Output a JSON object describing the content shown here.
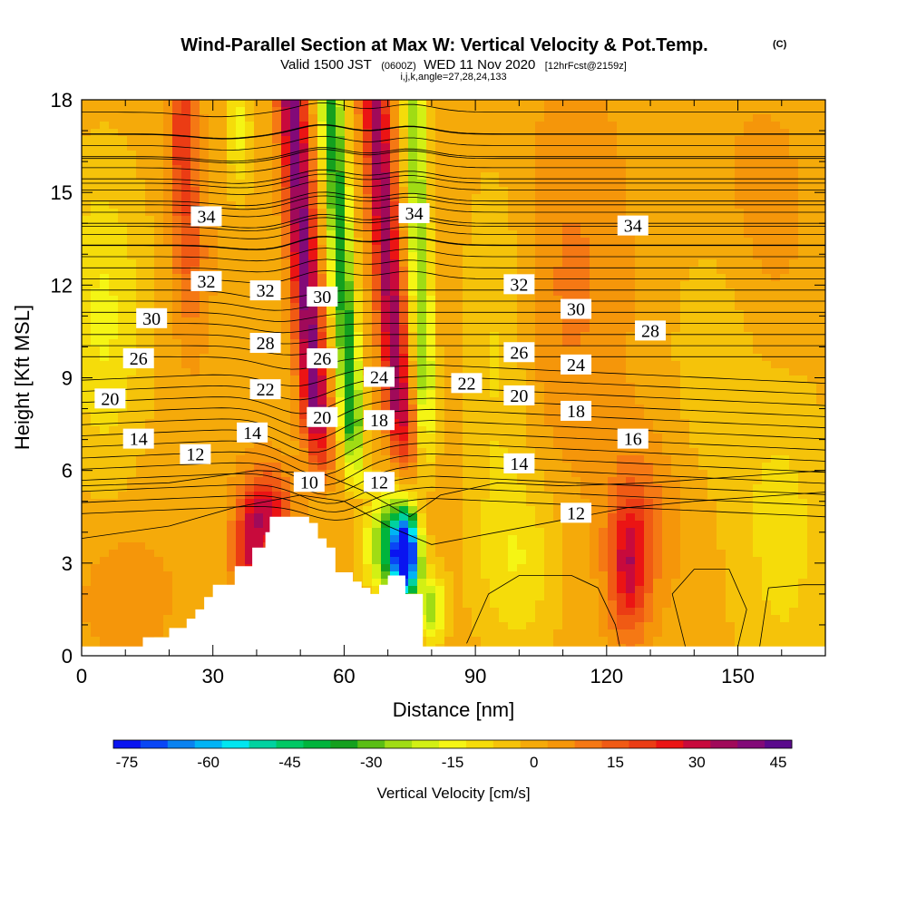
{
  "header": {
    "title": "Wind-Parallel Section at Max W: Vertical Velocity & Pot.Temp.",
    "title_tag": "(C)",
    "valid_prefix": "Valid 1500 JST",
    "valid_utc": "(0600Z)",
    "valid_date": "WED 11 Nov 2020",
    "forecast_tag": "[12hrFcst@2159z]",
    "indices": "i,j,k,angle=27,28,24,133"
  },
  "chart_data": {
    "type": "heatmap",
    "xlabel": "Distance [nm]",
    "ylabel": "Height [Kft MSL]",
    "xlim": [
      0,
      170
    ],
    "ylim": [
      0,
      18
    ],
    "x_ticks": [
      0,
      30,
      60,
      90,
      120,
      150
    ],
    "y_ticks": [
      0,
      3,
      6,
      9,
      12,
      15,
      18
    ],
    "shaded_field": "Vertical Velocity",
    "contour_field": "Potential Temperature (C)",
    "colorbar": {
      "label": "Vertical Velocity [cm/s]",
      "range": [
        -75,
        50
      ],
      "step": 5,
      "tick_labels": [
        "-75",
        "-60",
        "-45",
        "-30",
        "-15",
        "0",
        "15",
        "30",
        "45"
      ],
      "colors": [
        "#0a14f0",
        "#0a46f5",
        "#0a82f0",
        "#00b4f5",
        "#00e6f0",
        "#00d2a0",
        "#00c864",
        "#00b43c",
        "#14a01e",
        "#5abe14",
        "#a0dc14",
        "#d2f014",
        "#f5f514",
        "#f5dc0a",
        "#f5c30a",
        "#f5aa0a",
        "#f5960a",
        "#f57814",
        "#f05a14",
        "#eb3c14",
        "#eb1414",
        "#c80a3c",
        "#a00a5a",
        "#820a78",
        "#5a0a8c"
      ]
    },
    "terrain_profile": {
      "x": [
        0,
        10,
        12,
        14,
        19,
        20,
        22,
        24,
        25,
        26,
        27,
        28,
        29,
        30,
        33,
        35,
        37,
        39,
        40,
        42,
        43,
        46,
        47,
        50,
        51,
        52,
        53,
        54,
        55,
        56,
        57,
        58,
        59,
        60,
        61,
        62,
        63,
        64,
        65,
        66,
        67,
        68,
        69,
        70,
        71,
        72,
        73,
        74,
        75,
        76,
        77,
        78,
        80,
        170
      ],
      "height": [
        0.3,
        0.3,
        0.3,
        0.6,
        0.6,
        0.9,
        0.9,
        1.2,
        1.2,
        1.5,
        1.5,
        1.9,
        1.9,
        2.3,
        2.3,
        2.9,
        2.9,
        3.5,
        3.5,
        4.0,
        4.5,
        4.5,
        4.5,
        4.5,
        4.5,
        4.3,
        4.3,
        3.8,
        3.8,
        3.5,
        3.5,
        2.7,
        2.7,
        2.7,
        2.7,
        2.4,
        2.4,
        2.2,
        2.2,
        2.0,
        2.0,
        2.3,
        2.3,
        2.6,
        2.6,
        2.6,
        2.6,
        2.0,
        2.0,
        2.0,
        2.0,
        0.3,
        0.3,
        0.3
      ]
    },
    "contour_labels": [
      {
        "text": "34",
        "x": 28.5,
        "y": 14.2
      },
      {
        "text": "34",
        "x": 76,
        "y": 14.3
      },
      {
        "text": "34",
        "x": 126,
        "y": 13.9
      },
      {
        "text": "32",
        "x": 28.5,
        "y": 12.1
      },
      {
        "text": "32",
        "x": 42,
        "y": 11.8
      },
      {
        "text": "32",
        "x": 100,
        "y": 12.0
      },
      {
        "text": "30",
        "x": 16,
        "y": 10.9
      },
      {
        "text": "30",
        "x": 55,
        "y": 11.6
      },
      {
        "text": "30",
        "x": 113,
        "y": 11.2
      },
      {
        "text": "28",
        "x": 42,
        "y": 10.1
      },
      {
        "text": "28",
        "x": 130,
        "y": 10.5
      },
      {
        "text": "26",
        "x": 13,
        "y": 9.6
      },
      {
        "text": "26",
        "x": 55,
        "y": 9.6
      },
      {
        "text": "26",
        "x": 100,
        "y": 9.8
      },
      {
        "text": "24",
        "x": 68,
        "y": 9.0
      },
      {
        "text": "24",
        "x": 113,
        "y": 9.4
      },
      {
        "text": "22",
        "x": 42,
        "y": 8.6
      },
      {
        "text": "22",
        "x": 88,
        "y": 8.8
      },
      {
        "text": "20",
        "x": 6.5,
        "y": 8.3
      },
      {
        "text": "20",
        "x": 55,
        "y": 7.7
      },
      {
        "text": "20",
        "x": 100,
        "y": 8.4
      },
      {
        "text": "18",
        "x": 68,
        "y": 7.6
      },
      {
        "text": "18",
        "x": 113,
        "y": 7.9
      },
      {
        "text": "16",
        "x": 126,
        "y": 7.0
      },
      {
        "text": "14",
        "x": 13,
        "y": 7.0
      },
      {
        "text": "14",
        "x": 39,
        "y": 7.2
      },
      {
        "text": "14",
        "x": 100,
        "y": 6.2
      },
      {
        "text": "12",
        "x": 26,
        "y": 6.5
      },
      {
        "text": "12",
        "x": 68,
        "y": 5.6
      },
      {
        "text": "12",
        "x": 113,
        "y": 4.6
      },
      {
        "text": "10",
        "x": 52,
        "y": 5.6
      }
    ]
  }
}
